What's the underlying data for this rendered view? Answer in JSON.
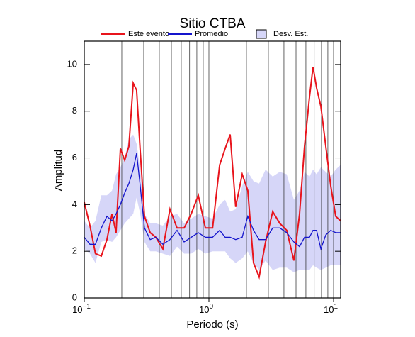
{
  "chart_data": {
    "type": "line",
    "title": "Sitio CTBA",
    "xlabel": "Periodo (s)",
    "ylabel": "Amplitud",
    "xlog": true,
    "grid": true,
    "xlim": [
      0.1,
      11.4
    ],
    "ylim": [
      0,
      11
    ],
    "xticks": [
      {
        "value": 0.1,
        "label": "10",
        "exponent": "−1"
      },
      {
        "value": 1,
        "label": "10",
        "exponent": "0"
      },
      {
        "value": 10,
        "label": "10",
        "exponent": "1"
      }
    ],
    "xminorticks": [
      0.2,
      0.3,
      0.4,
      0.5,
      0.6,
      0.7,
      0.8,
      0.9,
      2,
      3,
      4,
      5,
      6,
      7,
      8,
      9
    ],
    "yticks": [
      0,
      2,
      4,
      6,
      8,
      10
    ],
    "x": [
      0.1,
      0.111,
      0.123,
      0.137,
      0.152,
      0.167,
      0.18,
      0.195,
      0.211,
      0.228,
      0.247,
      0.263,
      0.281,
      0.304,
      0.338,
      0.375,
      0.427,
      0.487,
      0.555,
      0.633,
      0.721,
      0.822,
      0.937,
      1.07,
      1.22,
      1.35,
      1.48,
      1.64,
      1.85,
      2.05,
      2.28,
      2.53,
      2.85,
      3.25,
      3.7,
      4.21,
      4.81,
      5.34,
      5.85,
      6.41,
      6.84,
      7.31,
      7.91,
      8.66,
      9.49,
      10.4,
      11.4
    ],
    "series": [
      {
        "name": "Este evento",
        "color": "#e8141c",
        "values": [
          4.1,
          3.1,
          1.9,
          1.8,
          2.5,
          3.6,
          2.8,
          6.4,
          5.9,
          6.5,
          9.2,
          8.9,
          6.3,
          3.5,
          2.8,
          2.6,
          2.1,
          3.8,
          3.0,
          3.0,
          3.6,
          4.4,
          3.0,
          3.0,
          5.7,
          6.4,
          7.0,
          3.9,
          5.3,
          4.6,
          1.5,
          0.9,
          2.4,
          3.7,
          3.2,
          2.9,
          1.6,
          3.6,
          6.5,
          8.6,
          9.9,
          9.0,
          8.2,
          6.5,
          4.8,
          3.5,
          3.3
        ]
      },
      {
        "name": "Promedio",
        "color": "#1414cc",
        "values": [
          2.6,
          2.3,
          2.3,
          3.0,
          3.5,
          3.3,
          3.6,
          4.0,
          4.5,
          4.9,
          5.5,
          6.2,
          4.8,
          3.0,
          2.5,
          2.6,
          2.3,
          2.5,
          2.9,
          2.4,
          2.6,
          2.8,
          2.6,
          2.6,
          2.9,
          2.6,
          2.6,
          2.5,
          2.6,
          3.5,
          2.9,
          2.5,
          2.5,
          3.0,
          3.0,
          2.8,
          2.4,
          2.2,
          2.6,
          2.6,
          2.9,
          2.9,
          2.1,
          2.7,
          2.9,
          2.8,
          2.8
        ]
      },
      {
        "name": "Desv. Est.",
        "type": "band",
        "color": "#d6d6f8",
        "upper": [
          3.3,
          3.0,
          3.3,
          4.4,
          4.4,
          4.6,
          5.3,
          5.6,
          6.0,
          6.8,
          7.0,
          6.6,
          5.5,
          3.6,
          3.2,
          3.2,
          3.1,
          3.5,
          3.6,
          3.2,
          3.4,
          3.6,
          3.5,
          3.4,
          4.0,
          4.2,
          3.7,
          3.8,
          4.8,
          5.4,
          5.0,
          4.9,
          5.5,
          5.2,
          5.4,
          5.3,
          4.2,
          4.6,
          5.4,
          5.2,
          5.5,
          5.3,
          5.6,
          5.4,
          5.2,
          5.5,
          5.7
        ],
        "lower": [
          2.1,
          1.9,
          1.5,
          2.4,
          2.5,
          2.4,
          2.6,
          2.9,
          3.2,
          3.4,
          3.6,
          4.3,
          3.6,
          2.4,
          2.0,
          2.0,
          1.9,
          1.8,
          2.2,
          1.9,
          1.9,
          2.1,
          1.9,
          2.0,
          2.0,
          2.0,
          1.7,
          1.5,
          1.7,
          2.0,
          1.5,
          1.2,
          1.6,
          1.2,
          1.3,
          1.3,
          1.1,
          1.2,
          1.2,
          1.2,
          1.4,
          1.3,
          1.2,
          1.3,
          1.4,
          1.4,
          1.4
        ]
      }
    ]
  }
}
